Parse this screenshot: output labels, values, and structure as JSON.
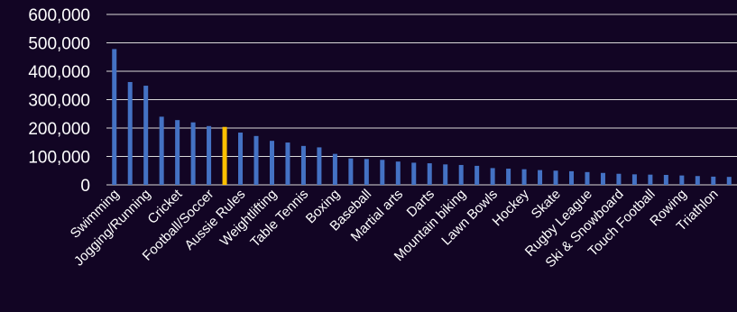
{
  "chart_data": {
    "type": "bar",
    "title": "",
    "xlabel": "",
    "ylabel": "",
    "ylim": [
      0,
      600000
    ],
    "yticks": [
      "600,000",
      "500,000",
      "400,000",
      "300,000",
      "200,000",
      "100,000",
      "0"
    ],
    "grid": true,
    "bar_color": "#4472C4",
    "highlight_color": "#FFC000",
    "background_color": "#120524",
    "highlight_index": 7,
    "categories": [
      "Swimming",
      "",
      "Jogging/Running",
      "",
      "Cricket",
      "",
      "Football/Soccer",
      "",
      "Aussie Rules",
      "",
      "Weightlifting",
      "",
      "Table Tennis",
      "",
      "Boxing",
      "",
      "Baseball",
      "",
      "Martial arts",
      "",
      "Darts",
      "",
      "Mountain biking",
      "",
      "Lawn Bowls",
      "",
      "Hockey",
      "",
      "Skate",
      "",
      "Rugby League",
      "",
      "Ski & Snowboard",
      "",
      "Touch Football",
      "",
      "Rowing",
      "",
      "Triathlon",
      ""
    ],
    "values": [
      478000,
      362000,
      349000,
      240000,
      228000,
      220000,
      207000,
      204000,
      184000,
      172000,
      155000,
      149000,
      137000,
      132000,
      109000,
      93000,
      91000,
      88000,
      82000,
      78000,
      76000,
      72000,
      70000,
      67000,
      59000,
      57000,
      55000,
      52000,
      50000,
      48000,
      45000,
      42000,
      39000,
      37000,
      36000,
      35000,
      33000,
      31000,
      29000,
      28000
    ]
  }
}
